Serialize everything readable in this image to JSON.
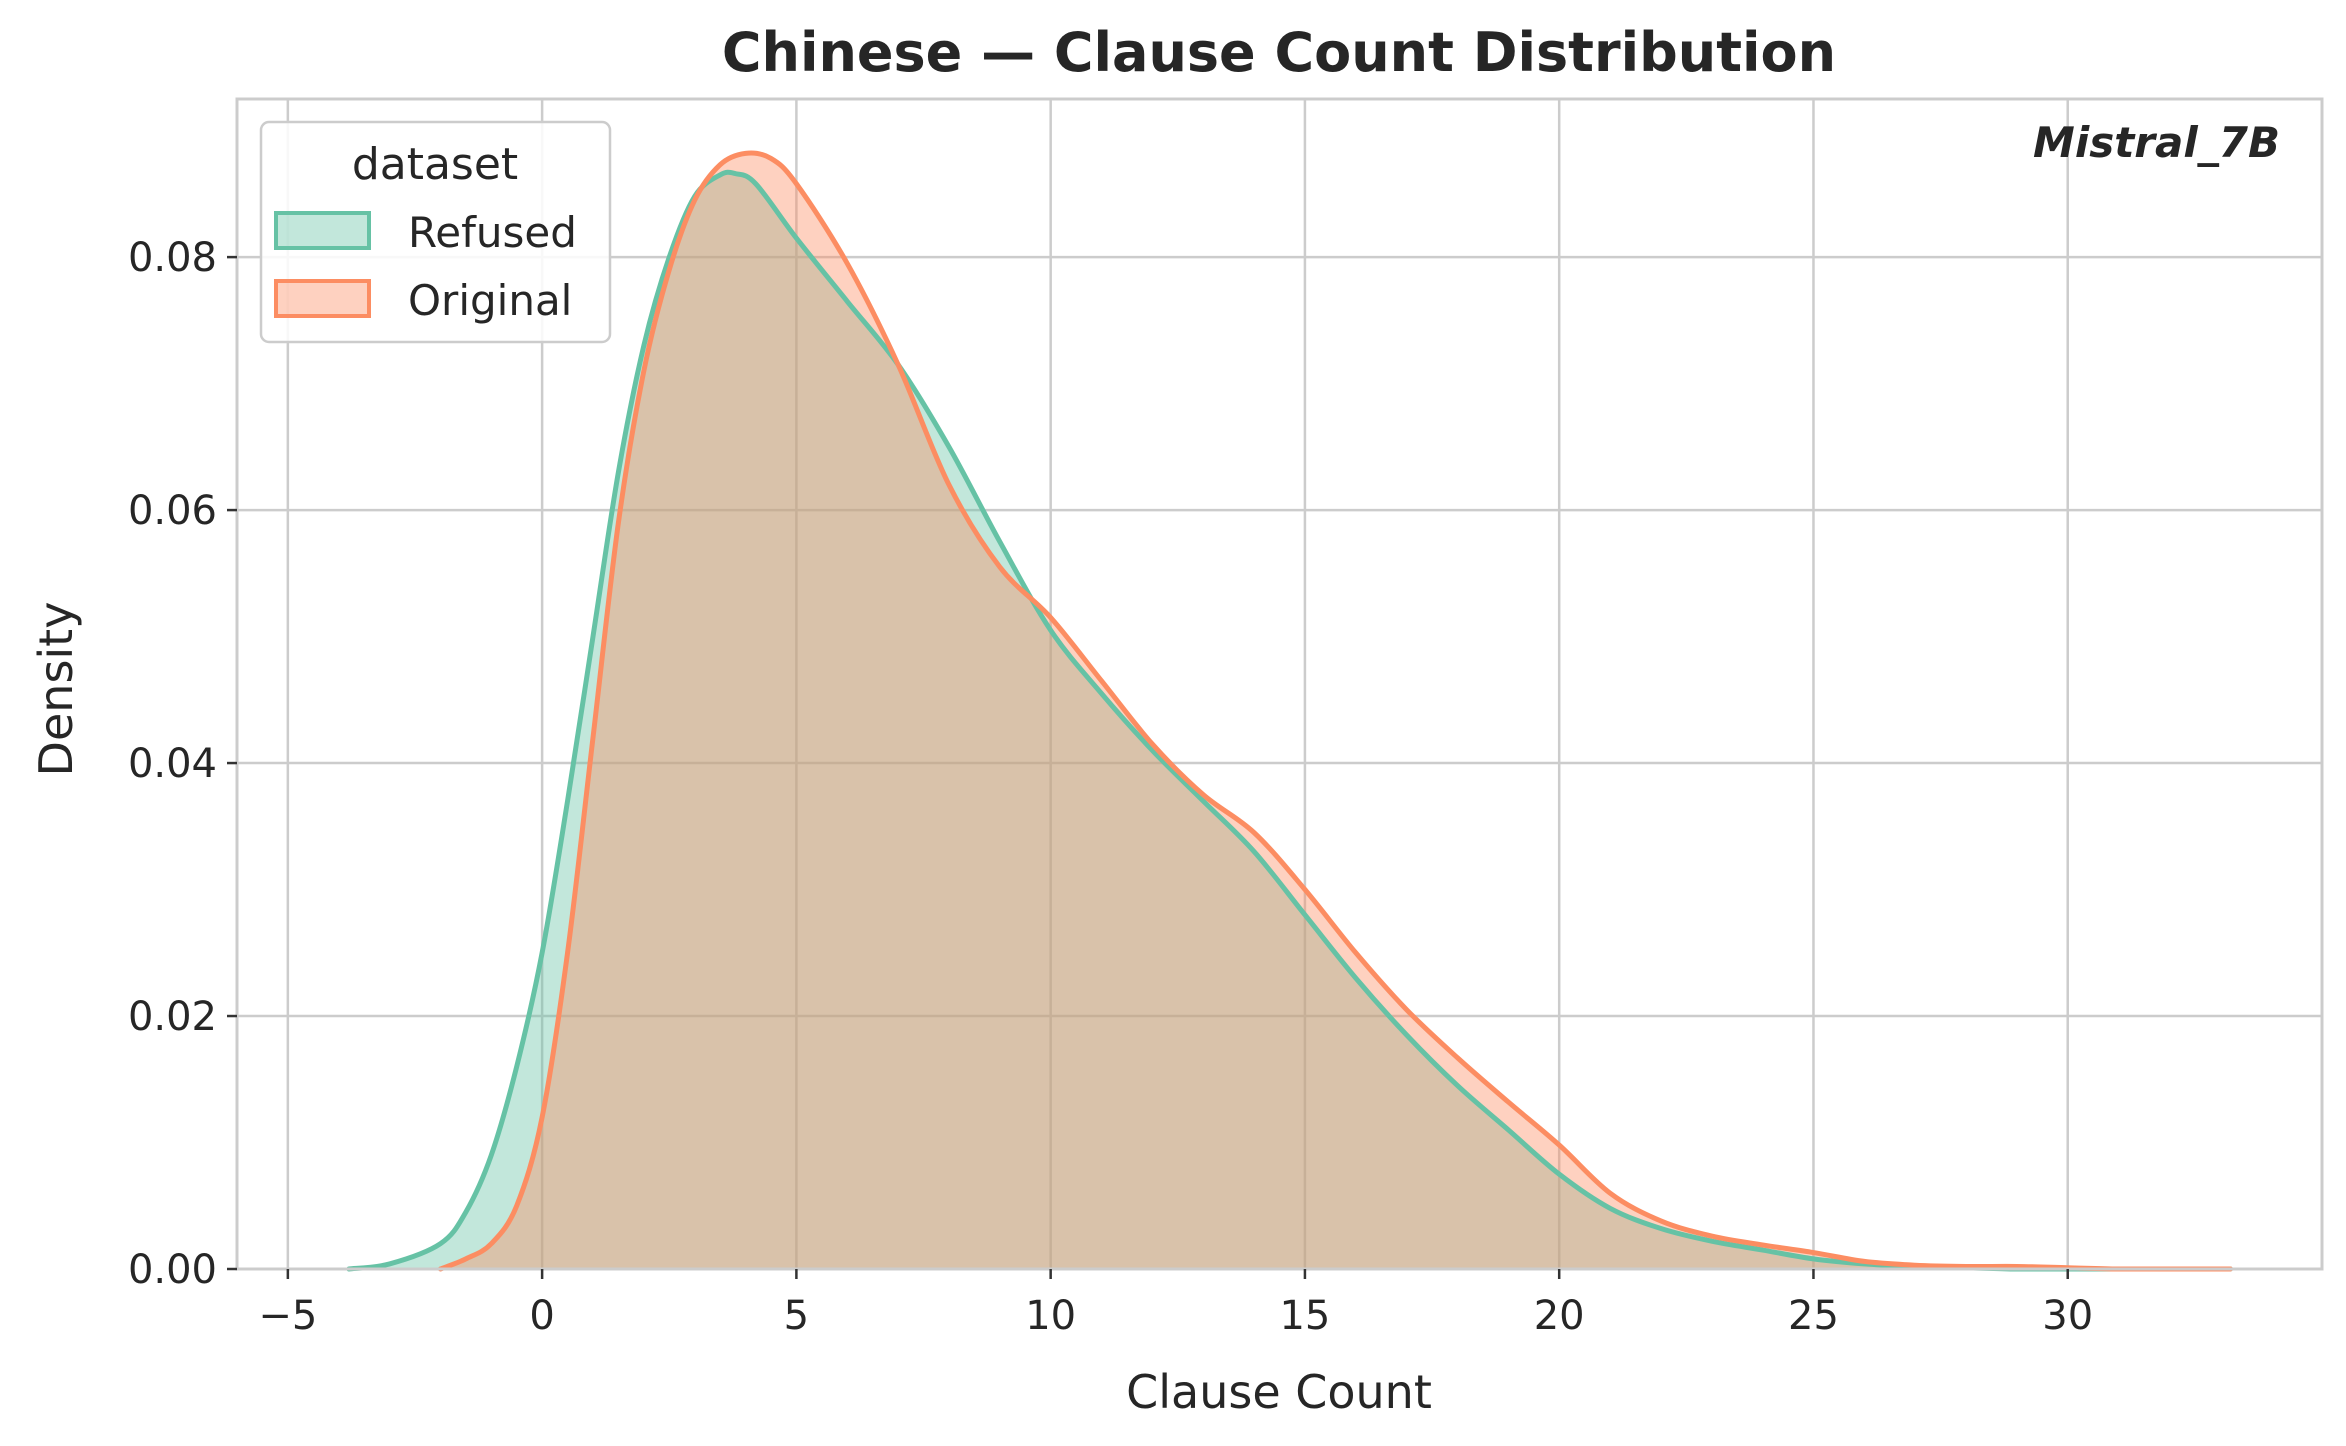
{
  "chart_data": {
    "type": "area",
    "title": "Chinese — Clause Count Distribution",
    "xlabel": "Clause Count",
    "ylabel": "Density",
    "annotation": "Mistral_7B",
    "xlim": [
      -6.0,
      35.0
    ],
    "ylim": [
      0.0,
      0.0925
    ],
    "x_ticks": [
      -5,
      0,
      5,
      10,
      15,
      20,
      25,
      30
    ],
    "x_tick_labels": [
      "−5",
      "0",
      "5",
      "10",
      "15",
      "20",
      "25",
      "30"
    ],
    "y_ticks": [
      0.0,
      0.02,
      0.04,
      0.06,
      0.08
    ],
    "y_tick_labels": [
      "0.00",
      "0.02",
      "0.04",
      "0.06",
      "0.08"
    ],
    "grid": true,
    "legend": {
      "title": "dataset",
      "placement": "top-left",
      "entries": [
        "Refused",
        "Original"
      ]
    },
    "series": [
      {
        "name": "Refused",
        "color": "#66c2a5",
        "x": [
          -3.8,
          -3,
          -2,
          -1.5,
          -1,
          -0.5,
          0,
          0.5,
          1,
          1.5,
          2,
          2.5,
          3,
          3.5,
          3.8,
          4.2,
          5,
          6,
          7,
          8,
          9,
          10,
          11,
          12,
          13,
          14,
          15,
          16,
          17,
          18,
          19,
          20,
          21,
          22,
          23,
          24,
          25,
          26,
          27,
          28,
          29,
          30,
          31,
          32,
          33.2
        ],
        "y": [
          0.0,
          0.0004,
          0.002,
          0.0045,
          0.009,
          0.016,
          0.025,
          0.037,
          0.05,
          0.063,
          0.073,
          0.08,
          0.0848,
          0.0865,
          0.0866,
          0.0858,
          0.0815,
          0.0765,
          0.0715,
          0.065,
          0.0575,
          0.0505,
          0.0455,
          0.041,
          0.037,
          0.033,
          0.028,
          0.023,
          0.0185,
          0.0145,
          0.011,
          0.0075,
          0.0048,
          0.0032,
          0.0022,
          0.0015,
          0.0008,
          0.0004,
          0.0002,
          0.0001,
          0.0,
          0.0,
          0.0,
          0.0,
          0.0
        ]
      },
      {
        "name": "Original",
        "color": "#fc8d62",
        "x": [
          -2,
          -1.5,
          -1,
          -0.5,
          0,
          0.5,
          1,
          1.5,
          2,
          2.5,
          3,
          3.5,
          4,
          4.5,
          5,
          6,
          7,
          8,
          9,
          10,
          11,
          12,
          13,
          14,
          15,
          16,
          17,
          18,
          19,
          20,
          21,
          22,
          23,
          24,
          25,
          26,
          27,
          28,
          29,
          30,
          31,
          32,
          33.2
        ],
        "y": [
          0.0,
          0.0008,
          0.002,
          0.005,
          0.012,
          0.025,
          0.042,
          0.059,
          0.071,
          0.079,
          0.0845,
          0.0873,
          0.0882,
          0.0878,
          0.0858,
          0.0795,
          0.0715,
          0.062,
          0.0555,
          0.0515,
          0.0465,
          0.0415,
          0.0375,
          0.0345,
          0.03,
          0.025,
          0.0205,
          0.0167,
          0.0132,
          0.0098,
          0.006,
          0.0038,
          0.0026,
          0.0019,
          0.0013,
          0.0006,
          0.0003,
          0.0002,
          0.0002,
          0.0001,
          0.0,
          0.0,
          0.0
        ]
      }
    ]
  }
}
